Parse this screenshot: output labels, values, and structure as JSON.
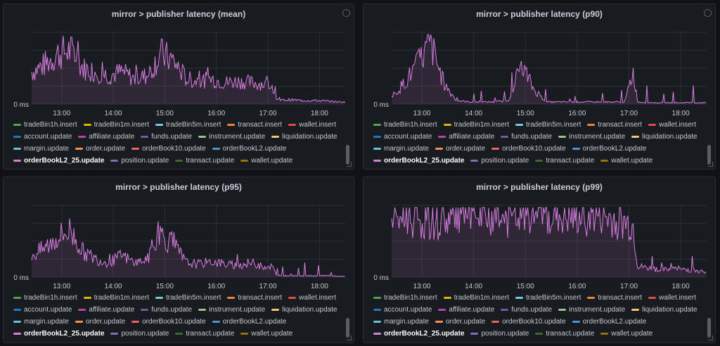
{
  "colors": {
    "series_line": "#d77ee0",
    "series_fill": "rgba(215,126,224,0.12)",
    "grid": "#2c2f35",
    "axis_text": "#c7c9cf"
  },
  "legend": {
    "items": [
      {
        "label": "tradeBin1h.insert",
        "color": "#56a64b"
      },
      {
        "label": "tradeBin1m.insert",
        "color": "#e0b400"
      },
      {
        "label": "tradeBin5m.insert",
        "color": "#6ed0e0"
      },
      {
        "label": "transact.insert",
        "color": "#ef843c"
      },
      {
        "label": "wallet.insert",
        "color": "#e24d42"
      },
      {
        "label": "account.update",
        "color": "#1f78c1"
      },
      {
        "label": "affiliate.update",
        "color": "#ba43a9"
      },
      {
        "label": "funds.update",
        "color": "#705da0"
      },
      {
        "label": "instrument.update",
        "color": "#9ac48a"
      },
      {
        "label": "liquidation.update",
        "color": "#f2c96d"
      },
      {
        "label": "margin.update",
        "color": "#65c5db"
      },
      {
        "label": "order.update",
        "color": "#f9934e"
      },
      {
        "label": "orderBook10.update",
        "color": "#ea6460"
      },
      {
        "label": "orderBookL2.update",
        "color": "#5195ce"
      },
      {
        "label": "orderBookL2_25.update",
        "color": "#d683ce"
      },
      {
        "label": "position.update",
        "color": "#806eb7"
      },
      {
        "label": "transact.update",
        "color": "#3f6833"
      },
      {
        "label": "wallet.update",
        "color": "#967302"
      }
    ]
  },
  "panels": [
    {
      "title": "mirror > publisher latency (mean)"
    },
    {
      "title": "mirror > publisher latency (p90)"
    },
    {
      "title": "mirror > publisher latency (p95)"
    },
    {
      "title": "mirror > publisher latency (p99)"
    }
  ],
  "chart_data": [
    {
      "type": "area",
      "title": "mirror > publisher latency (mean)",
      "x_ticks": [
        "13:00",
        "14:00",
        "15:00",
        "16:00",
        "17:00",
        "18:00"
      ],
      "y_ticks": [
        "0 ms"
      ],
      "x_range": [
        "12:25",
        "18:30"
      ],
      "series": [
        {
          "name": "orderBookL2_25.update",
          "times": [
            "12:25",
            "12:40",
            "12:55",
            "13:10",
            "13:25",
            "13:40",
            "13:55",
            "14:10",
            "14:25",
            "14:40",
            "14:55",
            "15:10",
            "15:25",
            "15:40",
            "15:55",
            "16:10",
            "16:25",
            "16:40",
            "16:55",
            "17:05",
            "17:10",
            "17:25",
            "17:40",
            "17:55",
            "18:10",
            "18:25"
          ],
          "values": [
            0.45,
            0.55,
            0.7,
            0.75,
            0.5,
            0.45,
            0.4,
            0.45,
            0.35,
            0.4,
            0.7,
            0.6,
            0.35,
            0.32,
            0.35,
            0.3,
            0.32,
            0.3,
            0.28,
            0.25,
            0.05,
            0.06,
            0.05,
            0.05,
            0.04,
            0.03
          ]
        }
      ]
    },
    {
      "type": "area",
      "title": "mirror > publisher latency (p90)",
      "x_ticks": [
        "13:00",
        "14:00",
        "15:00",
        "16:00",
        "17:00",
        "18:00"
      ],
      "y_ticks": [
        "0 ms"
      ],
      "x_range": [
        "12:25",
        "18:30"
      ],
      "series": [
        {
          "name": "orderBookL2_25.update",
          "times": [
            "12:25",
            "12:40",
            "12:55",
            "13:10",
            "13:25",
            "13:40",
            "13:55",
            "14:10",
            "14:25",
            "14:40",
            "14:55",
            "15:10",
            "15:25",
            "15:40",
            "15:55",
            "16:10",
            "16:25",
            "16:40",
            "16:55",
            "17:05",
            "17:10",
            "17:25",
            "17:40",
            "17:55",
            "18:10",
            "18:25"
          ],
          "values": [
            0.1,
            0.3,
            0.55,
            0.85,
            0.3,
            0.05,
            0.03,
            0.03,
            0.03,
            0.05,
            0.55,
            0.2,
            0.03,
            0.03,
            0.03,
            0.03,
            0.03,
            0.03,
            0.03,
            0.45,
            0.03,
            0.02,
            0.02,
            0.02,
            0.02,
            0.02
          ]
        }
      ]
    },
    {
      "type": "area",
      "title": "mirror > publisher latency (p95)",
      "x_ticks": [
        "13:00",
        "14:00",
        "15:00",
        "16:00",
        "17:00",
        "18:00"
      ],
      "y_ticks": [
        "0 ms"
      ],
      "x_range": [
        "12:25",
        "18:30"
      ],
      "series": [
        {
          "name": "orderBookL2_25.update",
          "times": [
            "12:25",
            "12:40",
            "12:55",
            "13:10",
            "13:25",
            "13:40",
            "13:55",
            "14:10",
            "14:25",
            "14:40",
            "14:55",
            "15:10",
            "15:25",
            "15:40",
            "15:55",
            "16:10",
            "16:25",
            "16:40",
            "16:55",
            "17:05",
            "17:10",
            "17:25",
            "17:40",
            "17:55",
            "18:10",
            "18:25"
          ],
          "values": [
            0.3,
            0.4,
            0.55,
            0.65,
            0.35,
            0.25,
            0.2,
            0.3,
            0.2,
            0.25,
            0.6,
            0.45,
            0.2,
            0.18,
            0.22,
            0.18,
            0.16,
            0.2,
            0.15,
            0.15,
            0.02,
            0.02,
            0.02,
            0.02,
            0.02,
            0.01
          ]
        }
      ]
    },
    {
      "type": "area",
      "title": "mirror > publisher latency (p99)",
      "x_ticks": [
        "13:00",
        "14:00",
        "15:00",
        "16:00",
        "17:00",
        "18:00"
      ],
      "y_ticks": [
        "0 ms"
      ],
      "x_range": [
        "12:25",
        "18:30"
      ],
      "series": [
        {
          "name": "orderBookL2_25.update",
          "times": [
            "12:25",
            "12:40",
            "12:55",
            "13:10",
            "13:25",
            "13:40",
            "13:55",
            "14:10",
            "14:25",
            "14:40",
            "14:55",
            "15:10",
            "15:25",
            "15:40",
            "15:55",
            "16:10",
            "16:25",
            "16:40",
            "16:55",
            "17:05",
            "17:10",
            "17:25",
            "17:40",
            "17:55",
            "18:10",
            "18:25"
          ],
          "values": [
            0.8,
            0.85,
            0.8,
            0.75,
            0.8,
            0.85,
            0.85,
            0.8,
            0.85,
            0.8,
            0.85,
            0.9,
            0.85,
            0.85,
            0.8,
            0.85,
            0.85,
            0.8,
            0.75,
            0.7,
            0.15,
            0.12,
            0.1,
            0.12,
            0.1,
            0.08
          ]
        }
      ]
    }
  ]
}
